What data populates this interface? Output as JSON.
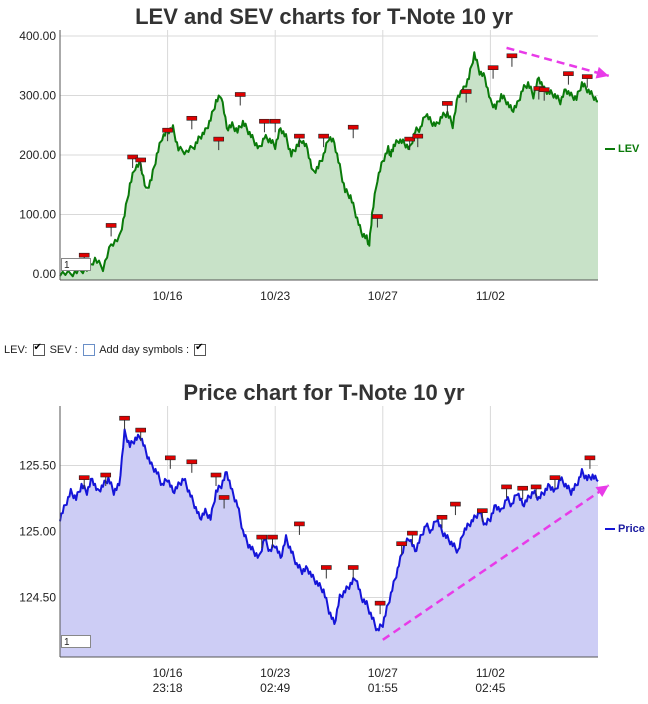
{
  "chart_data": [
    {
      "type": "area",
      "title": "LEV and SEV charts for T-Note 10 yr",
      "ylim": [
        -10,
        410
      ],
      "yticks": [
        0,
        100,
        200,
        300,
        400
      ],
      "ytick_labels": [
        "0.00",
        "100.00",
        "200.00",
        "300.00",
        "400.00"
      ],
      "xticks": [
        {
          "pos": 0.2,
          "line1": "10/16",
          "line2": "23:18"
        },
        {
          "pos": 0.4,
          "line1": "10/23",
          "line2": "02:49"
        },
        {
          "pos": 0.6,
          "line1": "10/27",
          "line2": "01:55"
        },
        {
          "pos": 0.8,
          "line1": "11/02",
          "line2": "02:45"
        }
      ],
      "grid": true,
      "legend_position": "right",
      "series": [
        {
          "name": "LEV",
          "color": "#0a7a0a",
          "fill": "#c8e2c8",
          "x": [
            0,
            0.02,
            0.035,
            0.05,
            0.065,
            0.08,
            0.095,
            0.11,
            0.12,
            0.13,
            0.14,
            0.15,
            0.16,
            0.17,
            0.18,
            0.19,
            0.2,
            0.21,
            0.22,
            0.235,
            0.25,
            0.26,
            0.27,
            0.28,
            0.29,
            0.3,
            0.31,
            0.32,
            0.33,
            0.34,
            0.35,
            0.36,
            0.37,
            0.38,
            0.39,
            0.4,
            0.41,
            0.42,
            0.43,
            0.44,
            0.45,
            0.46,
            0.47,
            0.48,
            0.49,
            0.5,
            0.51,
            0.52,
            0.53,
            0.54,
            0.55,
            0.56,
            0.57,
            0.575,
            0.58,
            0.59,
            0.6,
            0.61,
            0.615,
            0.62,
            0.63,
            0.64,
            0.65,
            0.66,
            0.67,
            0.68,
            0.69,
            0.7,
            0.71,
            0.72,
            0.73,
            0.74,
            0.75,
            0.76,
            0.77,
            0.78,
            0.79,
            0.8,
            0.81,
            0.82,
            0.83,
            0.84,
            0.85,
            0.86,
            0.87,
            0.88,
            0.89,
            0.9,
            0.91,
            0.92,
            0.93,
            0.94,
            0.95,
            0.96,
            0.97,
            0.98,
            0.99,
            1.0
          ],
          "y": [
            2,
            0,
            5,
            8,
            25,
            10,
            50,
            60,
            100,
            150,
            180,
            185,
            140,
            160,
            200,
            230,
            240,
            245,
            210,
            205,
            215,
            230,
            240,
            260,
            290,
            300,
            245,
            250,
            240,
            255,
            240,
            225,
            210,
            230,
            225,
            215,
            245,
            230,
            200,
            215,
            225,
            210,
            170,
            180,
            200,
            230,
            220,
            180,
            140,
            130,
            100,
            70,
            60,
            50,
            100,
            160,
            190,
            210,
            200,
            215,
            225,
            220,
            210,
            240,
            245,
            270,
            255,
            250,
            265,
            270,
            250,
            300,
            310,
            330,
            370,
            340,
            330,
            290,
            280,
            300,
            290,
            275,
            285,
            310,
            320,
            300,
            330,
            310,
            305,
            300,
            290,
            310,
            300,
            295,
            320,
            310,
            300,
            290
          ]
        }
      ],
      "annotations": [
        {
          "x": 0.045,
          "y": 30
        },
        {
          "x": 0.095,
          "y": 80
        },
        {
          "x": 0.135,
          "y": 195
        },
        {
          "x": 0.15,
          "y": 190
        },
        {
          "x": 0.2,
          "y": 240
        },
        {
          "x": 0.245,
          "y": 260
        },
        {
          "x": 0.295,
          "y": 225
        },
        {
          "x": 0.335,
          "y": 300
        },
        {
          "x": 0.38,
          "y": 255
        },
        {
          "x": 0.4,
          "y": 255
        },
        {
          "x": 0.445,
          "y": 230
        },
        {
          "x": 0.49,
          "y": 230
        },
        {
          "x": 0.545,
          "y": 245
        },
        {
          "x": 0.59,
          "y": 95
        },
        {
          "x": 0.65,
          "y": 225
        },
        {
          "x": 0.665,
          "y": 230
        },
        {
          "x": 0.72,
          "y": 285
        },
        {
          "x": 0.755,
          "y": 305
        },
        {
          "x": 0.805,
          "y": 345
        },
        {
          "x": 0.84,
          "y": 365
        },
        {
          "x": 0.89,
          "y": 310
        },
        {
          "x": 0.9,
          "y": 308
        },
        {
          "x": 0.945,
          "y": 335
        },
        {
          "x": 0.98,
          "y": 330
        }
      ],
      "trend_arrow": {
        "x0": 0.83,
        "y0": 380,
        "x1": 1.02,
        "y1": 333,
        "color": "#e83be8"
      }
    },
    {
      "type": "area",
      "title": "Price chart for T-Note 10 yr",
      "ylim": [
        124.05,
        125.95
      ],
      "yticks": [
        124.5,
        125.0,
        125.5
      ],
      "ytick_labels": [
        "124.50",
        "125.00",
        "125.50"
      ],
      "xticks": [
        {
          "pos": 0.2,
          "line1": "10/16",
          "line2": "23:18"
        },
        {
          "pos": 0.4,
          "line1": "10/23",
          "line2": "02:49"
        },
        {
          "pos": 0.6,
          "line1": "10/27",
          "line2": "01:55"
        },
        {
          "pos": 0.8,
          "line1": "11/02",
          "line2": "02:45"
        }
      ],
      "grid": true,
      "legend_position": "right",
      "series": [
        {
          "name": "Price",
          "color": "#1515d8",
          "fill": "#cdcdf5",
          "x": [
            0,
            0.01,
            0.02,
            0.03,
            0.04,
            0.05,
            0.06,
            0.07,
            0.08,
            0.09,
            0.1,
            0.11,
            0.12,
            0.13,
            0.14,
            0.15,
            0.16,
            0.17,
            0.18,
            0.19,
            0.2,
            0.21,
            0.22,
            0.23,
            0.24,
            0.25,
            0.26,
            0.27,
            0.28,
            0.29,
            0.3,
            0.31,
            0.32,
            0.33,
            0.34,
            0.35,
            0.36,
            0.37,
            0.38,
            0.39,
            0.4,
            0.41,
            0.42,
            0.43,
            0.44,
            0.45,
            0.46,
            0.47,
            0.48,
            0.49,
            0.5,
            0.51,
            0.52,
            0.53,
            0.54,
            0.55,
            0.56,
            0.57,
            0.58,
            0.59,
            0.6,
            0.61,
            0.62,
            0.63,
            0.64,
            0.65,
            0.66,
            0.67,
            0.68,
            0.69,
            0.7,
            0.71,
            0.72,
            0.73,
            0.74,
            0.75,
            0.76,
            0.77,
            0.78,
            0.79,
            0.8,
            0.81,
            0.82,
            0.83,
            0.84,
            0.85,
            0.86,
            0.87,
            0.88,
            0.89,
            0.9,
            0.91,
            0.92,
            0.93,
            0.94,
            0.95,
            0.96,
            0.97,
            0.98,
            0.99,
            1.0
          ],
          "y": [
            125.1,
            125.2,
            125.3,
            125.25,
            125.35,
            125.3,
            125.4,
            125.3,
            125.35,
            125.4,
            125.3,
            125.35,
            125.75,
            125.65,
            125.7,
            125.72,
            125.6,
            125.5,
            125.45,
            125.35,
            125.4,
            125.3,
            125.35,
            125.4,
            125.3,
            125.2,
            125.1,
            125.15,
            125.1,
            125.3,
            125.35,
            125.45,
            125.3,
            125.2,
            125.0,
            124.9,
            124.85,
            124.8,
            124.95,
            124.85,
            124.9,
            124.8,
            124.95,
            124.85,
            124.75,
            124.7,
            124.72,
            124.65,
            124.6,
            124.55,
            124.4,
            124.3,
            124.5,
            124.55,
            124.6,
            124.65,
            124.5,
            124.45,
            124.35,
            124.25,
            124.3,
            124.45,
            124.6,
            124.75,
            124.9,
            124.95,
            124.85,
            124.95,
            125.05,
            125.0,
            125.1,
            125.0,
            124.95,
            124.9,
            124.85,
            125.0,
            125.05,
            125.1,
            125.15,
            125.05,
            125.1,
            125.2,
            125.15,
            125.25,
            125.2,
            125.3,
            125.2,
            125.25,
            125.3,
            125.25,
            125.3,
            125.35,
            125.3,
            125.4,
            125.35,
            125.3,
            125.35,
            125.45,
            125.4,
            125.42,
            125.38
          ]
        }
      ],
      "annotations": [
        {
          "x": 0.045,
          "y": 125.4
        },
        {
          "x": 0.085,
          "y": 125.42
        },
        {
          "x": 0.12,
          "y": 125.85
        },
        {
          "x": 0.15,
          "y": 125.76
        },
        {
          "x": 0.205,
          "y": 125.55
        },
        {
          "x": 0.245,
          "y": 125.52
        },
        {
          "x": 0.29,
          "y": 125.42
        },
        {
          "x": 0.305,
          "y": 125.25
        },
        {
          "x": 0.375,
          "y": 124.95
        },
        {
          "x": 0.395,
          "y": 124.95
        },
        {
          "x": 0.445,
          "y": 125.05
        },
        {
          "x": 0.495,
          "y": 124.72
        },
        {
          "x": 0.545,
          "y": 124.72
        },
        {
          "x": 0.595,
          "y": 124.45
        },
        {
          "x": 0.635,
          "y": 124.9
        },
        {
          "x": 0.655,
          "y": 124.98
        },
        {
          "x": 0.71,
          "y": 125.1
        },
        {
          "x": 0.735,
          "y": 125.2
        },
        {
          "x": 0.785,
          "y": 125.15
        },
        {
          "x": 0.83,
          "y": 125.33
        },
        {
          "x": 0.86,
          "y": 125.32
        },
        {
          "x": 0.885,
          "y": 125.33
        },
        {
          "x": 0.92,
          "y": 125.4
        },
        {
          "x": 0.985,
          "y": 125.55
        }
      ],
      "trend_arrow": {
        "x0": 0.6,
        "y0": 124.18,
        "x1": 1.02,
        "y1": 125.35,
        "color": "#e83be8"
      }
    }
  ],
  "page": {
    "pager_value": "1",
    "controls": {
      "lev_label": "LEV:",
      "sev_label": "SEV :",
      "day_symbols_label": "Add day symbols :",
      "lev_checked": true,
      "sev_checked": false,
      "day_symbols_checked": true
    }
  }
}
